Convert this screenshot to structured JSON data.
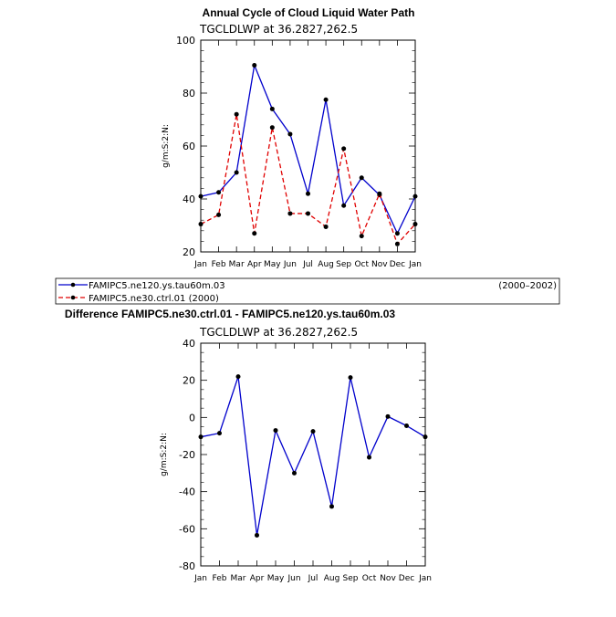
{
  "chart_data": [
    {
      "type": "line",
      "title": "Annual Cycle of Cloud Liquid Water Path",
      "subtitle": "TGCLDLWP at 36.2827,262.5",
      "xlabel": "",
      "ylabel": "g/m:S:2:N:",
      "categories": [
        "Jan",
        "Feb",
        "Mar",
        "Apr",
        "May",
        "Jun",
        "Jul",
        "Aug",
        "Sep",
        "Oct",
        "Nov",
        "Dec",
        "Jan"
      ],
      "ylim": [
        20,
        100
      ],
      "yticks": [
        20,
        40,
        60,
        80,
        100
      ],
      "series": [
        {
          "name": "FAMIPC5.ne120.ys.tau60m.03",
          "years": "(2000–2002)",
          "color": "#0000cc",
          "dash": "solid",
          "values": [
            41,
            42.5,
            50,
            90.5,
            74,
            64.5,
            42,
            77.5,
            37.5,
            48,
            41.5,
            27,
            41
          ]
        },
        {
          "name": "FAMIPC5.ne30.ctrl.01 (2000)",
          "color": "#e00000",
          "dash": "dashed",
          "values": [
            30.5,
            34,
            72,
            27,
            67,
            34.5,
            34.5,
            29.5,
            59,
            26,
            42,
            23,
            30.5
          ]
        }
      ]
    },
    {
      "type": "line",
      "title": "Difference FAMIPC5.ne30.ctrl.01 - FAMIPC5.ne120.ys.tau60m.03",
      "subtitle": "TGCLDLWP at 36.2827,262.5",
      "xlabel": "",
      "ylabel": "g/m:S:2:N:",
      "categories": [
        "Jan",
        "Feb",
        "Mar",
        "Apr",
        "May",
        "Jun",
        "Jul",
        "Aug",
        "Sep",
        "Oct",
        "Nov",
        "Dec",
        "Jan"
      ],
      "ylim": [
        -80,
        40
      ],
      "yticks": [
        -80,
        -60,
        -40,
        -20,
        0,
        20,
        40
      ],
      "series": [
        {
          "name": "difference",
          "color": "#0000cc",
          "dash": "solid",
          "values": [
            -10.5,
            -8.5,
            22,
            -63.5,
            -7,
            -30,
            -7.5,
            -48,
            21.5,
            -21.5,
            0.5,
            -4.5,
            -10.5
          ]
        }
      ]
    }
  ]
}
